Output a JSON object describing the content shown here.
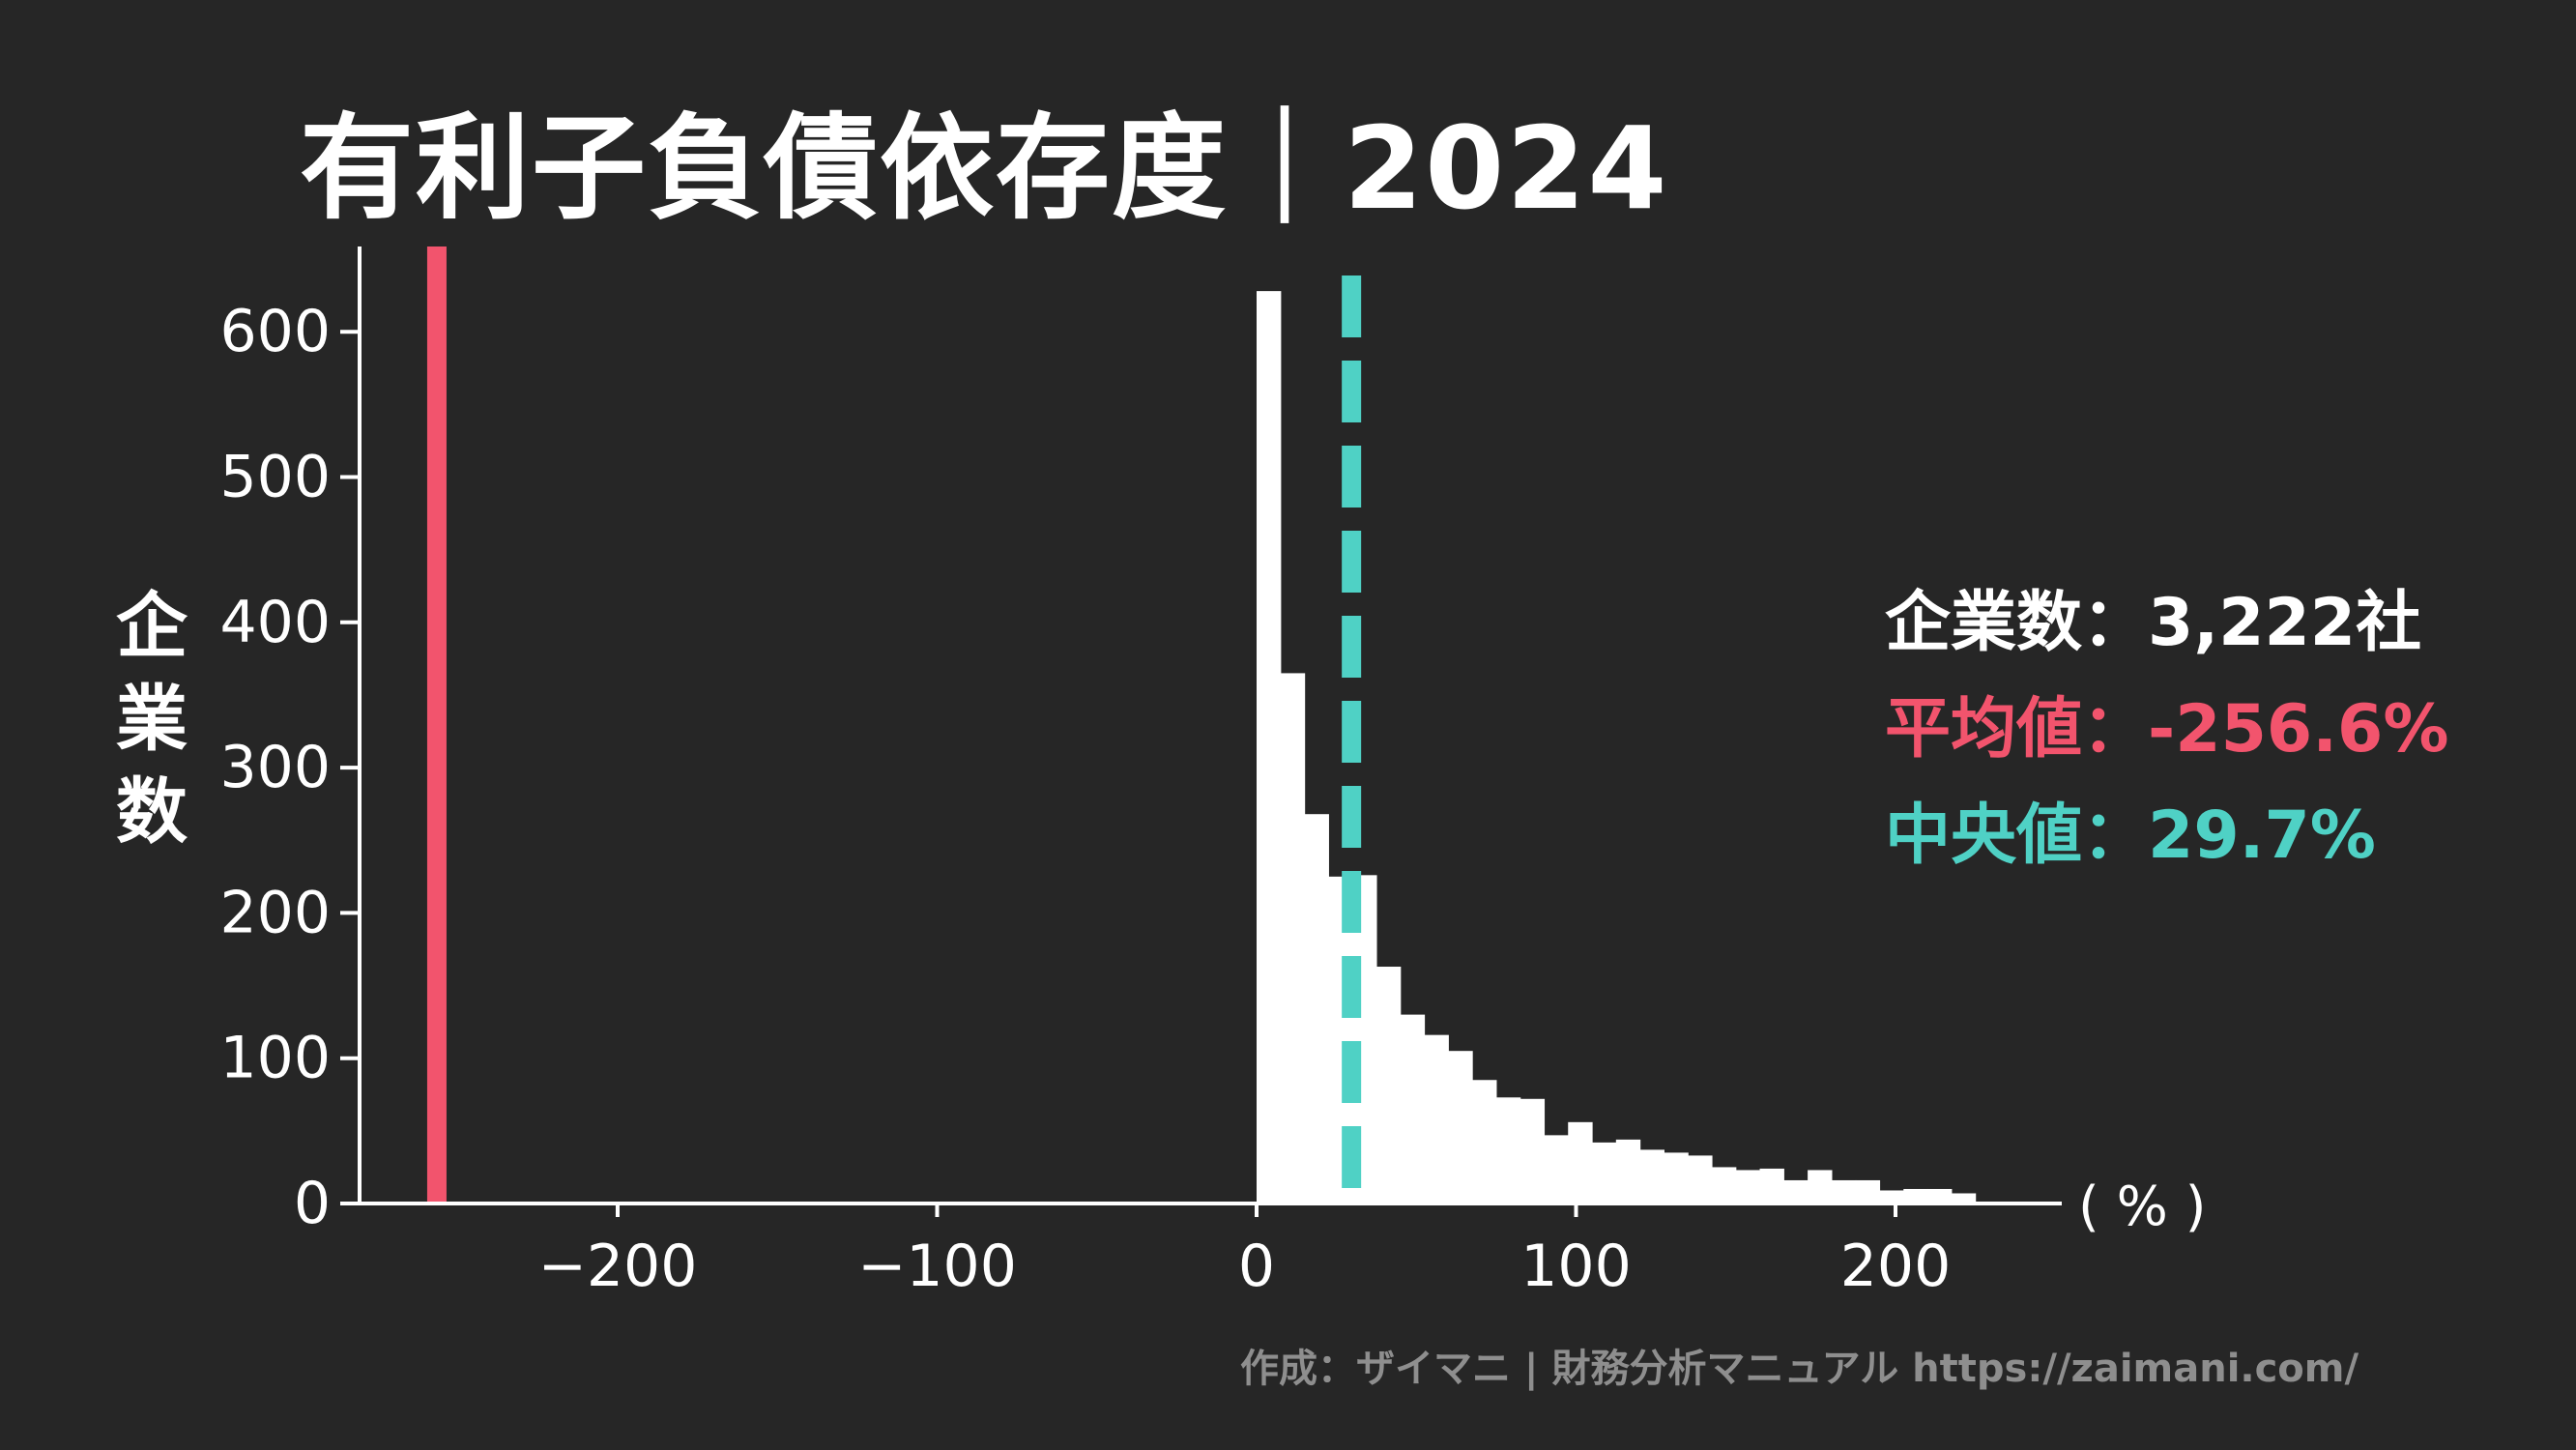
{
  "title": "有利子負債依存度｜2024",
  "credit": "作成：ザイマニ | 財務分析マニュアル https://zaimani.com/",
  "stats": {
    "count_label": "企業数",
    "count_value": "3,222社",
    "mean_label": "平均値",
    "mean_value": "-256.6%",
    "median_label": "中央値",
    "median_value": "29.7%",
    "separator": "："
  },
  "colors": {
    "background": "#262626",
    "bars": "#ffffff",
    "axis": "#ffffff",
    "mean": "#f2546d",
    "median": "#4fd1c5"
  },
  "chart_data": {
    "type": "bar",
    "subtype": "histogram",
    "ylabel": "企業数",
    "xunit": "( % )",
    "xlim": [
      -286,
      250
    ],
    "ylim": [
      0,
      660
    ],
    "xticks": [
      -200,
      -100,
      0,
      100,
      200
    ],
    "xtick_labels": [
      "−200",
      "−100",
      "0",
      "100",
      "200"
    ],
    "yticks": [
      0,
      100,
      200,
      300,
      400,
      500,
      600
    ],
    "ytick_labels": [
      "0",
      "100",
      "200",
      "300",
      "400",
      "500",
      "600"
    ],
    "grid": false,
    "bin_width": 7.5,
    "bin_start": 0,
    "values": [
      628,
      365,
      268,
      225,
      226,
      163,
      130,
      116,
      105,
      85,
      73,
      72,
      47,
      56,
      42,
      44,
      37,
      35,
      33,
      25,
      23,
      24,
      16,
      23,
      16,
      16,
      9,
      10,
      10,
      7
    ],
    "reference_lines": [
      {
        "name": "平均値",
        "x": -256.6,
        "style": "solid"
      },
      {
        "name": "中央値",
        "x": 29.7,
        "style": "dashed"
      }
    ]
  }
}
